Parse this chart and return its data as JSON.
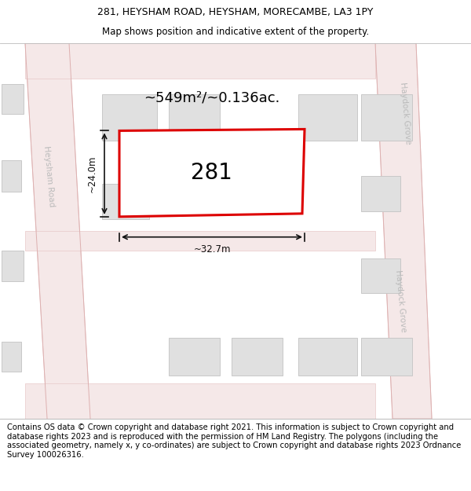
{
  "title_line1": "281, HEYSHAM ROAD, HEYSHAM, MORECAMBE, LA3 1PY",
  "title_line2": "Map shows position and indicative extent of the property.",
  "footer_text": "Contains OS data © Crown copyright and database right 2021. This information is subject to Crown copyright and database rights 2023 and is reproduced with the permission of HM Land Registry. The polygons (including the associated geometry, namely x, y co-ordinates) are subject to Crown copyright and database rights 2023 Ordnance Survey 100026316.",
  "area_label": "~549m²/~0.136ac.",
  "width_label": "~32.7m",
  "height_label": "~24.0m",
  "plot_number": "281",
  "map_bg": "#f8f8f8",
  "plot_fill": "#ffffff",
  "plot_edge": "#dd0000",
  "road_fill": "#f5e8e8",
  "road_edge": "#e8c8c8",
  "bldg_fill": "#e0e0e0",
  "bldg_edge": "#c8c8c8",
  "road_label_color": "#bbbbbb",
  "dim_color": "#111111",
  "title_fontsize": 9.0,
  "footer_fontsize": 7.2,
  "area_fontsize": 13.0,
  "plot_num_fontsize": 20.0,
  "dim_fontsize": 8.5,
  "road_label_fontsize": 7.5
}
